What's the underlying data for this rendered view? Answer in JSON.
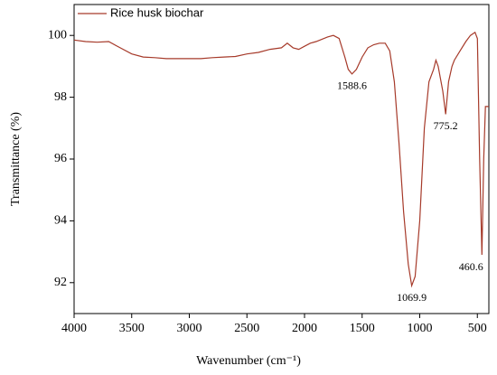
{
  "chart_data": {
    "type": "line",
    "xlabel": "Wavenumber (cm⁻¹)",
    "ylabel": "Transmittance (%)",
    "x": [
      4000,
      3900,
      3800,
      3700,
      3600,
      3500,
      3400,
      3300,
      3200,
      3100,
      3000,
      2900,
      2800,
      2700,
      2600,
      2500,
      2400,
      2300,
      2200,
      2150,
      2100,
      2050,
      2000,
      1950,
      1900,
      1800,
      1750,
      1700,
      1650,
      1620,
      1588.6,
      1550,
      1500,
      1450,
      1400,
      1350,
      1300,
      1260,
      1220,
      1180,
      1140,
      1100,
      1069.9,
      1040,
      1000,
      960,
      920,
      880,
      860,
      840,
      800,
      775.2,
      750,
      720,
      700,
      650,
      600,
      560,
      520,
      500,
      480,
      460.6,
      445,
      430,
      400
    ],
    "series": [
      {
        "name": "Rice husk biochar",
        "color": "#a63a2a",
        "values": [
          99.85,
          99.8,
          99.78,
          99.8,
          99.6,
          99.4,
          99.3,
          99.28,
          99.25,
          99.25,
          99.25,
          99.25,
          99.28,
          99.3,
          99.32,
          99.4,
          99.45,
          99.55,
          99.6,
          99.75,
          99.6,
          99.55,
          99.65,
          99.75,
          99.8,
          99.95,
          100.0,
          99.9,
          99.3,
          98.9,
          98.75,
          98.9,
          99.3,
          99.6,
          99.7,
          99.75,
          99.75,
          99.5,
          98.5,
          96.5,
          94.3,
          92.6,
          91.9,
          92.2,
          94.0,
          97.0,
          98.5,
          98.9,
          99.2,
          99.0,
          98.2,
          97.45,
          98.5,
          99.0,
          99.2,
          99.5,
          99.8,
          100.0,
          100.1,
          99.9,
          96.0,
          92.9,
          96.0,
          97.7,
          97.7
        ]
      }
    ],
    "annotations": [
      {
        "x": 1588.6,
        "y": 98.75
      },
      {
        "x": 1069.9,
        "y": 91.9
      },
      {
        "x": 775.2,
        "y": 97.45
      },
      {
        "x": 460.6,
        "y": 92.9
      }
    ],
    "xlim": [
      4000,
      400
    ],
    "xticks": [
      4000,
      3500,
      3000,
      2500,
      2000,
      1500,
      1000,
      500
    ],
    "ylim": [
      91,
      101
    ],
    "yticks": [
      92,
      94,
      96,
      98,
      100
    ],
    "legend": "upper left"
  }
}
